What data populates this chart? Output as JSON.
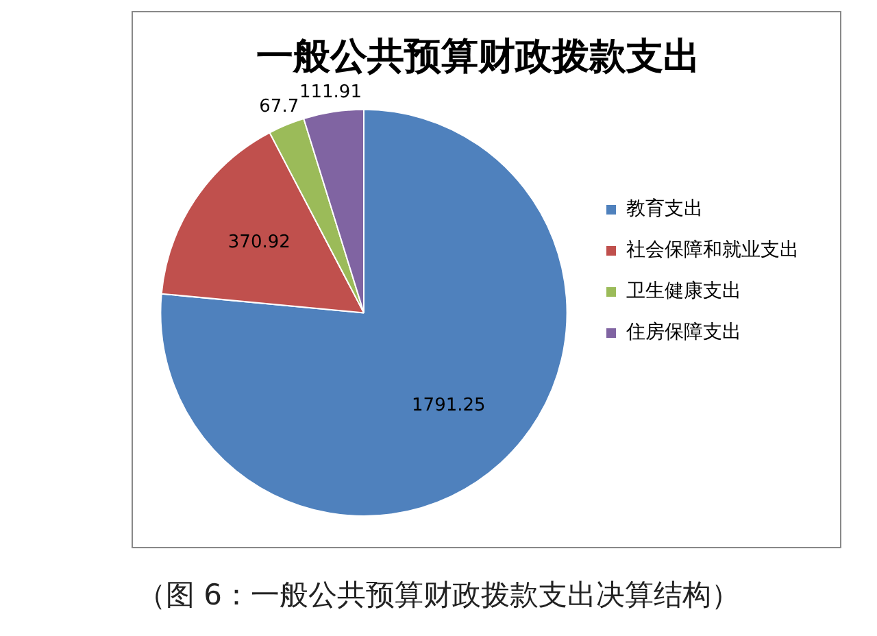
{
  "chart_data": {
    "type": "pie",
    "title": "一般公共预算财政拨款支出",
    "categories": [
      "教育支出",
      "社会保障和就业支出",
      "卫生健康支出",
      "住房保障支出"
    ],
    "values": [
      1791.25,
      370.92,
      67.7,
      111.91
    ],
    "colors": [
      "#4f81bd",
      "#c0504d",
      "#9bbb59",
      "#8064a2"
    ],
    "data_labels": true,
    "legend": "right",
    "annotations": [
      "（图 6：一般公共预算财政拨款支出决算结构）"
    ]
  }
}
